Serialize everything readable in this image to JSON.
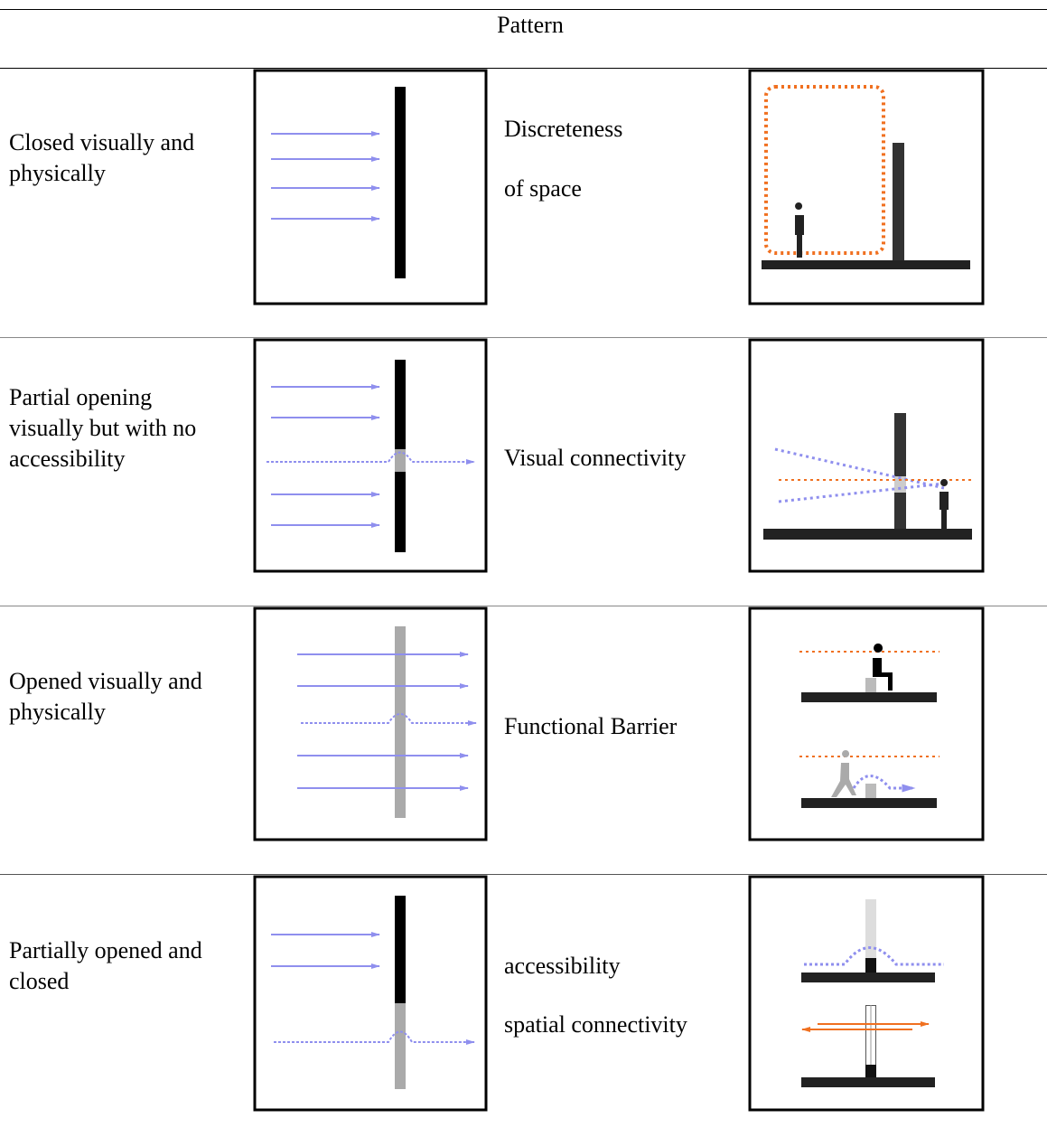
{
  "table": {
    "header": "Pattern",
    "rows": [
      {
        "condition": [
          "Closed visually and",
          "physically"
        ],
        "pattern": [
          "Discreteness",
          "of space"
        ]
      },
      {
        "condition": [
          "Partial opening",
          "visually but with no",
          "accessibility"
        ],
        "pattern": [
          "Visual connectivity"
        ]
      },
      {
        "condition": [
          "Opened visually and",
          "physically"
        ],
        "pattern": [
          "Functional Barrier"
        ]
      },
      {
        "condition": [
          "Partially opened and",
          "closed"
        ],
        "pattern": [
          "accessibility",
          "spatial connectivity"
        ]
      }
    ]
  }
}
